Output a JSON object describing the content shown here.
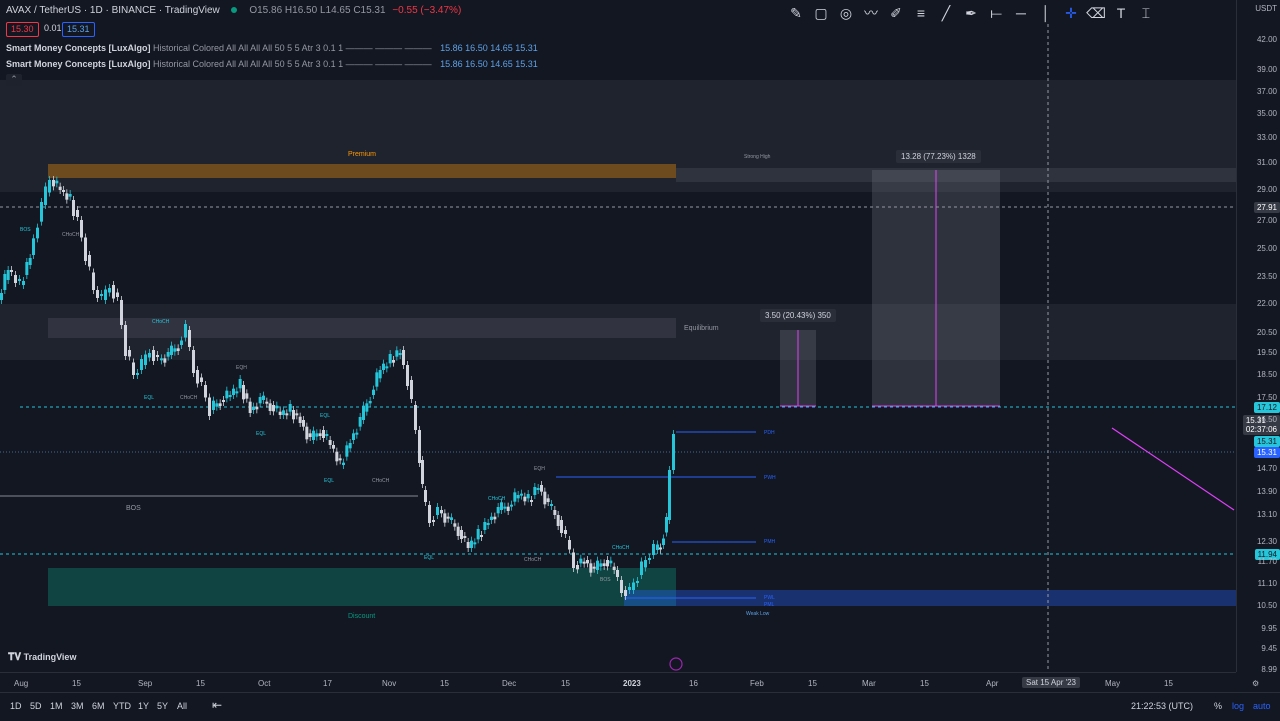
{
  "header": {
    "symbol": "AVAX / TetherUS · 1D · BINANCE · TradingView",
    "ohlc": "O15.86 H16.50 L14.65 C15.31",
    "change": "−0.55 (−3.47%)",
    "sell_price": "15.30",
    "spread": "0.01",
    "buy_price": "15.31"
  },
  "indicators": [
    {
      "title": "Smart Money Concepts [LuxAlgo]",
      "args": "Historical Colored All All All All 50 5 5 Atr 3 0.1 1 ——— ——— ———",
      "values": "15.86  16.50  14.65  15.31"
    },
    {
      "title": "Smart Money Concepts [LuxAlgo]",
      "args": "Historical Colored All All All All 50 5 5 Atr 3 0.1 1 ——— ——— ———",
      "values": "15.86  16.50  14.65  15.31"
    }
  ],
  "currency": "USDT",
  "price_ticks": [
    "42.00",
    "39.00",
    "37.00",
    "35.00",
    "33.00",
    "31.00",
    "29.00",
    "27.00",
    "25.00",
    "23.50",
    "22.00",
    "20.50",
    "19.50",
    "18.50",
    "17.50",
    "16.50",
    "14.70",
    "13.90",
    "13.10",
    "12.30",
    "11.70",
    "11.10",
    "10.50",
    "9.95",
    "9.45",
    "8.99"
  ],
  "price_tags": {
    "cursor": "27.91",
    "level1": "17.12",
    "last": "15.31",
    "countdown": "02:37:06",
    "t2": "15.31",
    "t3": "15.31",
    "level2": "11.94"
  },
  "time_ticks": [
    "Aug",
    "15",
    "Sep",
    "15",
    "Oct",
    "17",
    "Nov",
    "15",
    "Dec",
    "15",
    "2023",
    "16",
    "Feb",
    "15",
    "Mar",
    "15",
    "Apr",
    "May",
    "15"
  ],
  "time_cursor": "Sat 15 Apr '23",
  "labels": {
    "premium": "Premium",
    "discount": "Discount",
    "equilibrium": "Equilibrium",
    "strong_high": "Strong High",
    "weak_low": "Weak Low",
    "bos": "BOS",
    "bos_small": "BOS",
    "choch": "CHoCH",
    "eqh": "EQH",
    "eql": "EQL",
    "pdh": "PDH",
    "pwh": "PWH",
    "pmh": "PMH",
    "pwl": "PWL",
    "pml": "PML"
  },
  "measures": {
    "big": "13.28 (77.23%) 1328",
    "small": "3.50 (20.43%) 350"
  },
  "bottom_bar": {
    "ranges": [
      "1D",
      "5D",
      "1M",
      "3M",
      "6M",
      "YTD",
      "1Y",
      "5Y",
      "All"
    ],
    "clock": "21:22:53 (UTC)",
    "percent": "%",
    "log": "log",
    "auto": "auto"
  },
  "logo": "TradingView",
  "colors": {
    "bg": "#131722",
    "up": "#26c6da",
    "down": "#d1d4dc",
    "premium": "#ff9800",
    "discount": "#089981",
    "magenta": "#e040fb",
    "accent": "#2962ff"
  }
}
